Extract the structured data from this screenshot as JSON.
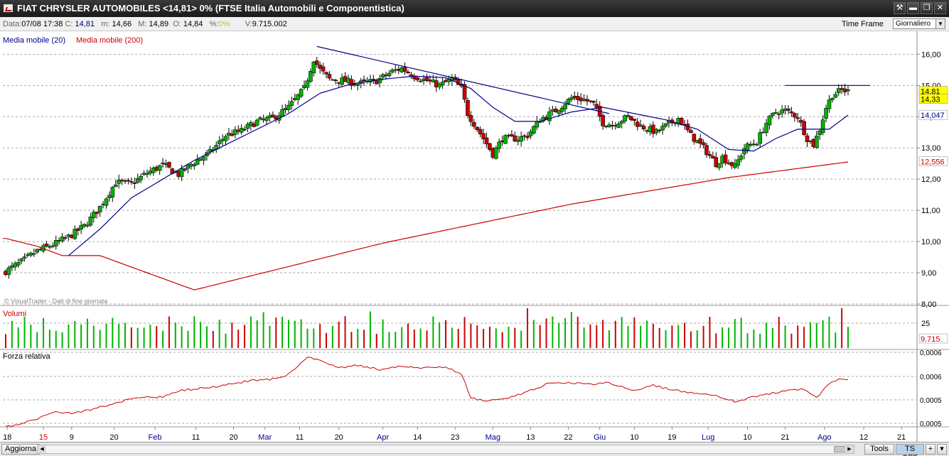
{
  "window": {
    "title": "FIAT CHRYSLER AUTOMOBILES <14,81> 0%  (FTSE Italia Automobili e Componentistica)",
    "buttons": [
      "⚒",
      "▬",
      "❐",
      "✕"
    ]
  },
  "quote": {
    "date_label": "Data:",
    "date": "07/08 17:38",
    "close_label": "C:",
    "close": "14,81",
    "min_label": "m:",
    "min": "14,66",
    "max_label": "M:",
    "max": "14,89",
    "open_label": "O:",
    "open": "14,84",
    "pct_label": "%:",
    "pct": "0%",
    "vol_label": "V:",
    "vol": "9.715.002"
  },
  "timeframe": {
    "label": "Time Frame",
    "value": "Giornaliero"
  },
  "bottom": {
    "refresh": "Aggiorna",
    "tools": "Tools",
    "ts": "TS OFF",
    "plus": "+"
  },
  "colors": {
    "ma20": "#00008b",
    "ma200": "#cc0000",
    "up": "#00b400",
    "down": "#cc0000",
    "trendline": "#00008b"
  },
  "chart_data": {
    "type": "candlestick",
    "price_panel": {
      "legend": [
        "Media mobile (20)",
        "Media mobile (200)"
      ],
      "watermark": "© VisualTrader - Dati di fine giornata",
      "ylim": [
        8,
        16.6
      ],
      "y_ticks": [
        "16,00",
        "15,00",
        "14,00",
        "13,00",
        "12,00",
        "11,00",
        "10,00",
        "9,00",
        "8,00"
      ],
      "y_tick_values": [
        16,
        15,
        14,
        13,
        12,
        11,
        10,
        9,
        8
      ],
      "last_close_label": "14,81",
      "last_low_label": "14,33",
      "ma20_last_label": "14,047",
      "ma200_last_label": "12,556",
      "resistance_level": 15.0,
      "trendline": [
        [
          99,
          16.25
        ],
        [
          192,
          14.1
        ]
      ],
      "anchors_close": [
        [
          0,
          9.05
        ],
        [
          5,
          9.35
        ],
        [
          10,
          9.7
        ],
        [
          15,
          9.9
        ],
        [
          20,
          10.15
        ],
        [
          25,
          10.5
        ],
        [
          30,
          11.1
        ],
        [
          35,
          11.9
        ],
        [
          40,
          11.85
        ],
        [
          45,
          12.2
        ],
        [
          50,
          12.45
        ],
        [
          55,
          12.15
        ],
        [
          60,
          12.55
        ],
        [
          65,
          12.85
        ],
        [
          70,
          13.4
        ],
        [
          75,
          13.55
        ],
        [
          80,
          13.85
        ],
        [
          85,
          13.95
        ],
        [
          90,
          14.3
        ],
        [
          95,
          14.9
        ],
        [
          98,
          15.85
        ],
        [
          100,
          15.5
        ],
        [
          103,
          15.2
        ],
        [
          108,
          15.15
        ],
        [
          112,
          15.05
        ],
        [
          118,
          15.15
        ],
        [
          123,
          15.45
        ],
        [
          126,
          15.55
        ],
        [
          130,
          15.3
        ],
        [
          134,
          15.15
        ],
        [
          138,
          15.0
        ],
        [
          142,
          15.2
        ],
        [
          145,
          14.9
        ],
        [
          147,
          14.1
        ],
        [
          152,
          13.3
        ],
        [
          155,
          12.8
        ],
        [
          158,
          13.3
        ],
        [
          163,
          13.3
        ],
        [
          166,
          13.4
        ],
        [
          170,
          13.9
        ],
        [
          175,
          14.2
        ],
        [
          180,
          14.6
        ],
        [
          184,
          14.55
        ],
        [
          187,
          14.4
        ],
        [
          190,
          13.8
        ],
        [
          193,
          13.75
        ],
        [
          198,
          14.0
        ],
        [
          202,
          13.7
        ],
        [
          207,
          13.5
        ],
        [
          210,
          13.7
        ],
        [
          214,
          13.95
        ],
        [
          218,
          13.4
        ],
        [
          222,
          13.0
        ],
        [
          226,
          12.5
        ],
        [
          228,
          12.7
        ],
        [
          232,
          12.4
        ],
        [
          235,
          13.0
        ],
        [
          239,
          13.2
        ],
        [
          242,
          13.8
        ],
        [
          245,
          14.15
        ],
        [
          248,
          14.2
        ],
        [
          252,
          14.0
        ],
        [
          255,
          13.3
        ],
        [
          257,
          13.1
        ],
        [
          259,
          13.6
        ],
        [
          261,
          14.3
        ],
        [
          263,
          14.7
        ],
        [
          266,
          14.85
        ],
        [
          268,
          14.81
        ]
      ],
      "ma20_anchors": [
        [
          20,
          9.55
        ],
        [
          30,
          10.4
        ],
        [
          40,
          11.4
        ],
        [
          50,
          12.0
        ],
        [
          60,
          12.6
        ],
        [
          70,
          13.1
        ],
        [
          80,
          13.6
        ],
        [
          90,
          14.1
        ],
        [
          100,
          14.75
        ],
        [
          110,
          15.05
        ],
        [
          120,
          15.2
        ],
        [
          130,
          15.3
        ],
        [
          140,
          15.25
        ],
        [
          148,
          14.9
        ],
        [
          155,
          14.3
        ],
        [
          162,
          13.85
        ],
        [
          170,
          13.85
        ],
        [
          180,
          14.15
        ],
        [
          190,
          14.3
        ],
        [
          200,
          14.1
        ],
        [
          210,
          13.9
        ],
        [
          220,
          13.6
        ],
        [
          230,
          12.95
        ],
        [
          238,
          12.9
        ],
        [
          245,
          13.3
        ],
        [
          252,
          13.6
        ],
        [
          258,
          13.6
        ],
        [
          262,
          13.6
        ],
        [
          268,
          14.05
        ]
      ],
      "ma200_anchors": [
        [
          0,
          10.1
        ],
        [
          10,
          9.85
        ],
        [
          18,
          9.55
        ],
        [
          30,
          9.55
        ],
        [
          60,
          8.45
        ],
        [
          120,
          9.95
        ],
        [
          180,
          11.2
        ],
        [
          230,
          12.05
        ],
        [
          268,
          12.55
        ]
      ]
    },
    "volume_panel": {
      "label": "Volumi",
      "y_tick": "25",
      "last_label": "9.715."
    },
    "rs_panel": {
      "label": "Forza relativa",
      "y_ticks": [
        "0,0006",
        "0,0006",
        "0,0005",
        "0,0005"
      ],
      "anchors": [
        [
          0,
          0.0
        ],
        [
          8,
          0.14
        ],
        [
          16,
          0.33
        ],
        [
          22,
          0.3
        ],
        [
          28,
          0.38
        ],
        [
          34,
          0.5
        ],
        [
          42,
          0.62
        ],
        [
          50,
          0.64
        ],
        [
          56,
          0.77
        ],
        [
          64,
          0.83
        ],
        [
          72,
          0.9
        ],
        [
          78,
          0.98
        ],
        [
          84,
          1.0
        ],
        [
          90,
          1.1
        ],
        [
          96,
          1.47
        ],
        [
          100,
          1.38
        ],
        [
          106,
          1.24
        ],
        [
          112,
          1.29
        ],
        [
          120,
          1.19
        ],
        [
          126,
          1.28
        ],
        [
          132,
          1.24
        ],
        [
          140,
          1.25
        ],
        [
          145,
          1.1
        ],
        [
          148,
          0.63
        ],
        [
          152,
          0.55
        ],
        [
          160,
          0.61
        ],
        [
          166,
          0.74
        ],
        [
          172,
          0.9
        ],
        [
          180,
          0.92
        ],
        [
          186,
          0.9
        ],
        [
          192,
          0.93
        ],
        [
          200,
          0.76
        ],
        [
          206,
          0.88
        ],
        [
          212,
          0.78
        ],
        [
          216,
          0.74
        ],
        [
          222,
          0.71
        ],
        [
          228,
          0.62
        ],
        [
          232,
          0.54
        ],
        [
          238,
          0.64
        ],
        [
          246,
          0.74
        ],
        [
          254,
          0.79
        ],
        [
          258,
          0.62
        ],
        [
          262,
          0.9
        ],
        [
          265,
          1.0
        ],
        [
          268,
          0.97
        ]
      ]
    },
    "x_ticks": [
      {
        "label": "18",
        "idx": 1,
        "color": "#000"
      },
      {
        "label": "15",
        "idx": 24,
        "color": "#cc0000"
      },
      {
        "label": "9",
        "idx": 42,
        "color": "#000"
      },
      {
        "label": "20",
        "idx": 69,
        "color": "#000"
      },
      {
        "label": "Feb",
        "idx": 95,
        "color": "#00008b"
      },
      {
        "label": "11",
        "idx": 121,
        "color": "#000"
      },
      {
        "label": "20",
        "idx": 145,
        "color": "#000"
      },
      {
        "label": "Mar",
        "idx": 165,
        "color": "#00008b"
      },
      {
        "label": "11",
        "idx": 187,
        "color": "#000"
      },
      {
        "label": "20",
        "idx": 212,
        "color": "#000"
      },
      {
        "label": "Apr",
        "idx": 240,
        "color": "#00008b"
      },
      {
        "label": "14",
        "idx": 262,
        "color": "#000"
      },
      {
        "label": "23",
        "idx": 286,
        "color": "#000"
      },
      {
        "label": "Mag",
        "idx": 310,
        "color": "#00008b"
      },
      {
        "label": "13",
        "idx": 334,
        "color": "#000"
      },
      {
        "label": "22",
        "idx": 358,
        "color": "#000"
      },
      {
        "label": "Giu",
        "idx": 378,
        "color": "#00008b"
      },
      {
        "label": "10",
        "idx": 400,
        "color": "#000"
      },
      {
        "label": "19",
        "idx": 424,
        "color": "#000"
      },
      {
        "label": "Lug",
        "idx": 447,
        "color": "#00008b"
      },
      {
        "label": "10",
        "idx": 472,
        "color": "#000"
      },
      {
        "label": "21",
        "idx": 496,
        "color": "#000"
      },
      {
        "label": "Ago",
        "idx": 521,
        "color": "#00008b"
      },
      {
        "label": "12",
        "idx": 546,
        "color": "#000"
      },
      {
        "label": "21",
        "idx": 570,
        "color": "#000"
      }
    ]
  }
}
